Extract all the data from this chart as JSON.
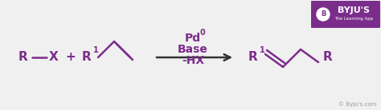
{
  "bg_color": "#f0f0f0",
  "chem_color": "#7b2d8b",
  "arrow_color": "#333333",
  "text_color": "#888888",
  "byju_purple": "#7b2d8b",
  "figsize": [
    4.74,
    1.38
  ],
  "dpi": 100,
  "copyright": "© Byju's.com",
  "byju_logo_text": "BYJU'S",
  "byju_sub_text": "The Learning App",
  "catalyst_lines": [
    "Pd°",
    "Base",
    "-HX"
  ]
}
